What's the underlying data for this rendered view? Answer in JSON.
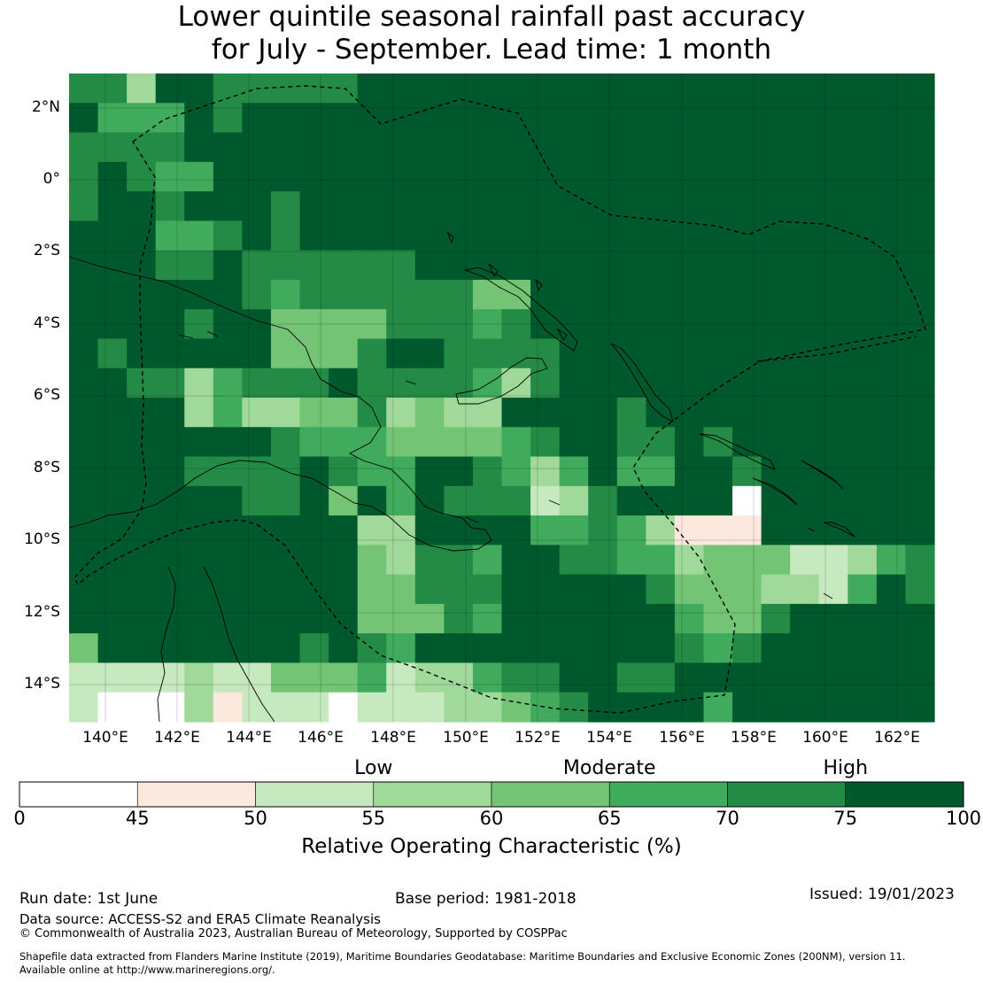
{
  "title": {
    "line1": "Lower quintile seasonal rainfall past accuracy",
    "line2": "for July - September. Lead time: 1 month"
  },
  "map": {
    "lat_labels": [
      "2°N",
      "0°",
      "2°S",
      "4°S",
      "6°S",
      "8°S",
      "10°S",
      "12°S",
      "14°S"
    ],
    "lon_labels": [
      "140°E",
      "142°E",
      "144°E",
      "146°E",
      "148°E",
      "150°E",
      "152°E",
      "154°E",
      "156°E",
      "158°E",
      "160°E",
      "162°E"
    ]
  },
  "colorbar": {
    "categories": [
      "Low",
      "Moderate",
      "High"
    ],
    "ticks": [
      "0",
      "45",
      "50",
      "55",
      "60",
      "65",
      "70",
      "75",
      "100"
    ],
    "colors": [
      "#ffffff",
      "#fde8dd",
      "#c7e9c0",
      "#a1d99b",
      "#74c476",
      "#41ab5d",
      "#238b45",
      "#00592c"
    ],
    "title": "Relative Operating Characteristic (%)"
  },
  "footer": {
    "run_date": "Run date: 1st June",
    "base_period": "Base period: 1981-2018",
    "issued": "Issued: 19/01/2023",
    "source": "Data source: ACCESS-S2 and ERA5 Climate Reanalysis",
    "copyright": "© Commonwealth of Australia 2023, Australian Bureau of Meteorology, Supported by COSPPac",
    "shapefile_line1": "Shapefile data extracted from Flanders Marine Institute (2019), Maritime Boundaries Geodatabase: Maritime Boundaries and Exclusive Economic Zones (200NM), version 11.",
    "shapefile_line2": "Available online at http://www.marineregions.org/."
  }
}
